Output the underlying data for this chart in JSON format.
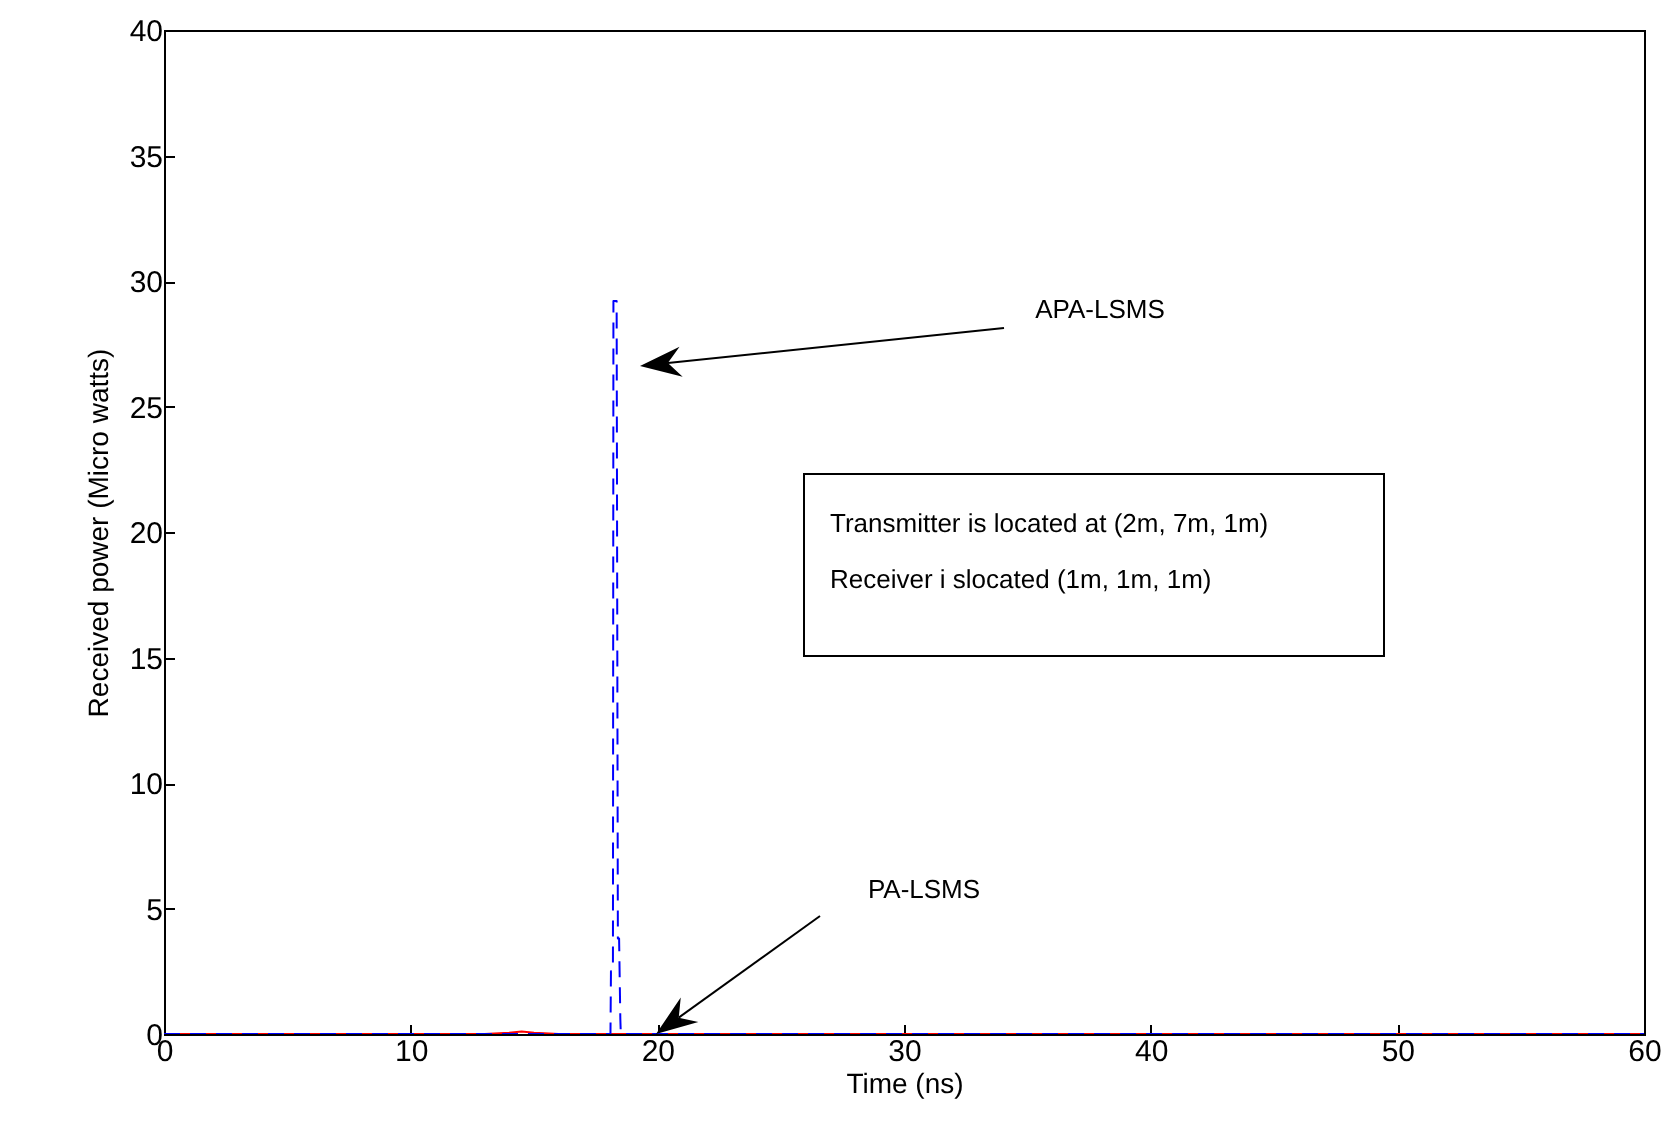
{
  "chart_data": {
    "type": "line",
    "xlabel": "Time (ns)",
    "ylabel": "Received power (Micro watts)",
    "xlim": [
      0,
      60
    ],
    "xticks": [
      0,
      10,
      20,
      30,
      40,
      50,
      60
    ],
    "ylim": [
      0,
      40
    ],
    "yticks": [
      0,
      5,
      10,
      15,
      20,
      25,
      30,
      35,
      40
    ],
    "grid": false,
    "series": [
      {
        "color": "#ff0000",
        "line_style": "solid",
        "x": [
          0,
          13,
          14,
          14.5,
          15,
          16,
          60
        ],
        "values": [
          0,
          0,
          0.05,
          0.1,
          0.05,
          0,
          0
        ]
      },
      {
        "color": "#0000ff",
        "line_style": "dashed",
        "x": [
          0,
          18.1,
          18.12,
          18.2,
          18.22,
          18.35,
          18.4,
          18.45,
          18.5,
          18.52,
          60
        ],
        "values": [
          0,
          0,
          2.5,
          2.5,
          29.2,
          29.2,
          3.8,
          3.8,
          0.6,
          0,
          0
        ]
      }
    ],
    "annotations": [
      "APA-LSMS",
      "PA-LSMS",
      "Transmitter is located at (2m, 7m, 1m)",
      "Receiver i slocated (1m, 1m, 1m)"
    ]
  }
}
